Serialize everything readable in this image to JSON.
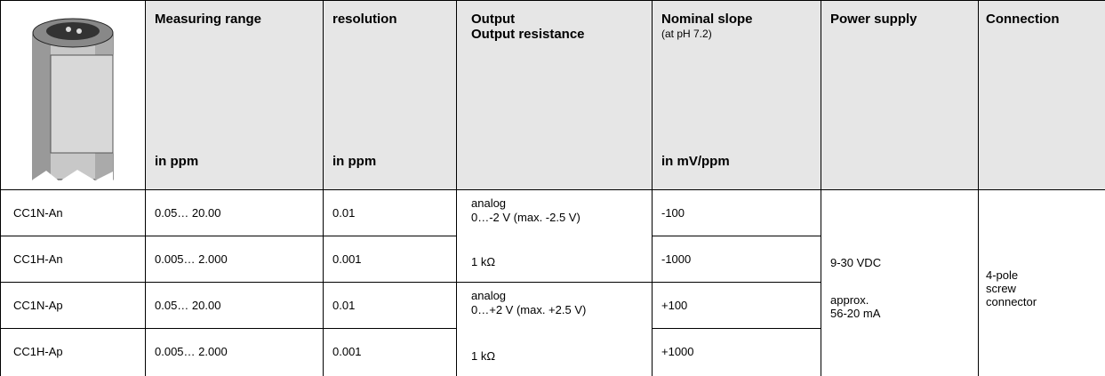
{
  "header": {
    "measuring_range": {
      "title": "Measuring range",
      "unit": "in ppm"
    },
    "resolution": {
      "title": "resolution",
      "unit": "in ppm"
    },
    "output": {
      "title": "Output",
      "subtitle": "Output resistance"
    },
    "nominal_slope": {
      "title": "Nominal slope",
      "note": "(at pH 7.2)",
      "unit": "in mV/ppm"
    },
    "power_supply": {
      "title": "Power supply"
    },
    "connection": {
      "title": "Connection"
    }
  },
  "table": {
    "rows": [
      {
        "model": "CC1N-An",
        "range": "0.05… 20.00",
        "resolution": "0.01",
        "slope": "-100"
      },
      {
        "model": "CC1H-An",
        "range": "0.005… 2.000",
        "resolution": "0.001",
        "slope": "-1000"
      },
      {
        "model": "CC1N-Ap",
        "range": "0.05… 20.00",
        "resolution": "0.01",
        "slope": "+100"
      },
      {
        "model": "CC1H-Ap",
        "range": "0.005… 2.000",
        "resolution": "0.001",
        "slope": "+1000"
      }
    ],
    "output": [
      {
        "type": "analog",
        "range": "0…-2 V (max. -2.5 V)",
        "resistance": "1 kΩ"
      },
      {
        "type": "analog",
        "range": "0…+2 V (max. +2.5 V)",
        "resistance": "1 kΩ"
      }
    ],
    "power_supply": {
      "voltage": "9-30 VDC",
      "current": [
        "approx.",
        "56-20 mA"
      ]
    },
    "connection": [
      "4-pole",
      "screw",
      "connector"
    ]
  }
}
